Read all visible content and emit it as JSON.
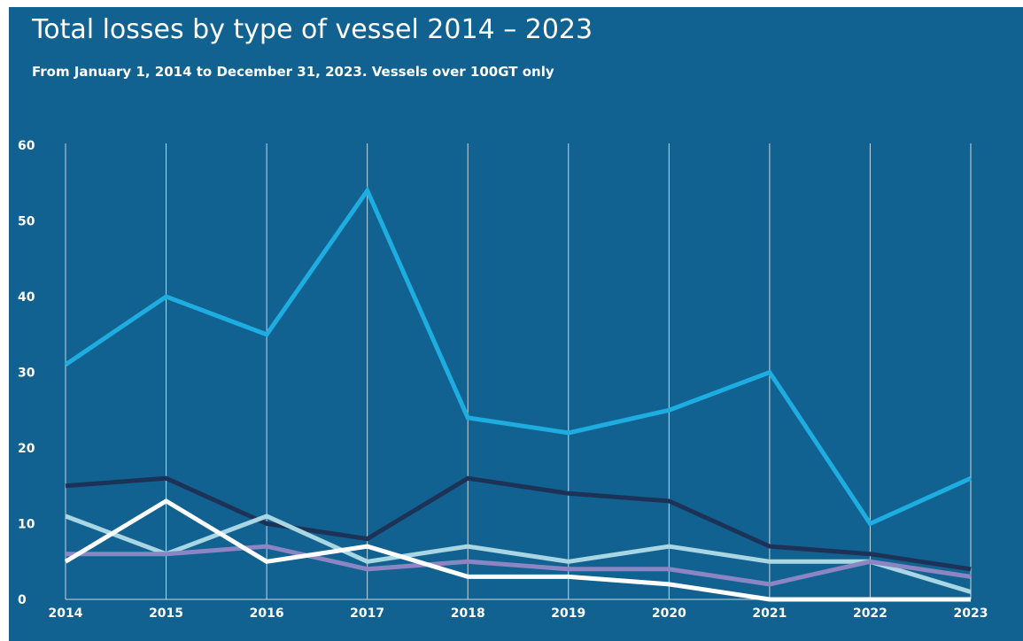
{
  "header": {
    "title": "Total losses by type of vessel 2014 – 2023",
    "subtitle": "From January 1, 2014 to December 31, 2023. Vessels over 100GT only"
  },
  "chart_data": {
    "type": "line",
    "title": "Total losses by type of vessel 2014 – 2023",
    "subtitle": "From January 1, 2014 to December 31, 2023. Vessels over 100GT only",
    "xlabel": "",
    "ylabel": "",
    "x": [
      "2014",
      "2015",
      "2016",
      "2017",
      "2018",
      "2019",
      "2020",
      "2021",
      "2022",
      "2023"
    ],
    "ylim": [
      0,
      60
    ],
    "yticks": [
      0,
      10,
      20,
      30,
      40,
      50,
      60
    ],
    "grid": "vertical",
    "legend": "none",
    "series": [
      {
        "color": "#1eade0",
        "values": [
          31,
          40,
          35,
          54,
          24,
          22,
          25,
          30,
          10,
          16
        ]
      },
      {
        "color": "#1d3257",
        "values": [
          15,
          16,
          10,
          8,
          16,
          14,
          13,
          7,
          6,
          4
        ]
      },
      {
        "color": "#a9d6e3",
        "values": [
          11,
          6,
          11,
          5,
          7,
          5,
          7,
          5,
          5,
          1
        ]
      },
      {
        "color": "#8b86c3",
        "values": [
          6,
          6,
          7,
          4,
          5,
          4,
          4,
          2,
          5,
          3
        ]
      },
      {
        "color": "#ffffff",
        "values": [
          5,
          13,
          5,
          7,
          3,
          3,
          2,
          0,
          0,
          0
        ]
      }
    ]
  }
}
